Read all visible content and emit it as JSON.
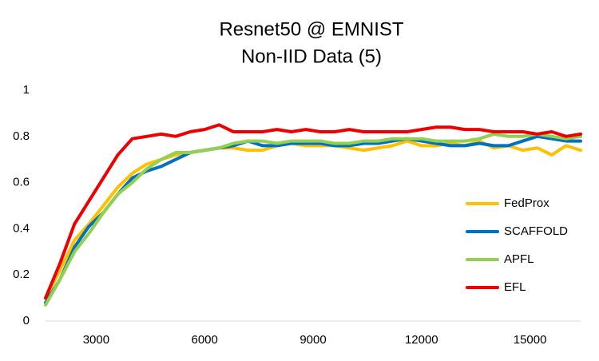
{
  "chart_data": {
    "type": "line",
    "title": "Resnet50 @ EMNIST",
    "subtitle": "Non-IID Data (5)",
    "x": [
      1600,
      2000,
      2400,
      2800,
      3200,
      3600,
      4000,
      4400,
      4800,
      5200,
      5600,
      6000,
      6400,
      6800,
      7200,
      7600,
      8000,
      8400,
      8800,
      9200,
      9600,
      10000,
      10400,
      10800,
      11200,
      11600,
      12000,
      12400,
      12800,
      13200,
      13600,
      14000,
      14400,
      14800,
      15200,
      15600,
      16000,
      16400
    ],
    "series": [
      {
        "name": "FedProx",
        "color": "#ffc000",
        "values": [
          0.1,
          0.22,
          0.35,
          0.42,
          0.5,
          0.58,
          0.64,
          0.68,
          0.7,
          0.72,
          0.73,
          0.74,
          0.75,
          0.75,
          0.74,
          0.74,
          0.76,
          0.77,
          0.76,
          0.76,
          0.76,
          0.75,
          0.74,
          0.75,
          0.76,
          0.78,
          0.76,
          0.76,
          0.77,
          0.76,
          0.78,
          0.75,
          0.76,
          0.74,
          0.75,
          0.72,
          0.76,
          0.74
        ]
      },
      {
        "name": "SCAFFOLD",
        "color": "#0070c0",
        "values": [
          0.08,
          0.18,
          0.32,
          0.41,
          0.47,
          0.55,
          0.62,
          0.65,
          0.67,
          0.7,
          0.73,
          0.74,
          0.75,
          0.76,
          0.78,
          0.76,
          0.76,
          0.77,
          0.77,
          0.77,
          0.76,
          0.76,
          0.77,
          0.77,
          0.78,
          0.79,
          0.78,
          0.77,
          0.76,
          0.76,
          0.77,
          0.76,
          0.76,
          0.78,
          0.8,
          0.79,
          0.78,
          0.78
        ]
      },
      {
        "name": "APFL",
        "color": "#92d050",
        "values": [
          0.07,
          0.18,
          0.3,
          0.38,
          0.47,
          0.55,
          0.6,
          0.66,
          0.7,
          0.73,
          0.73,
          0.74,
          0.75,
          0.77,
          0.78,
          0.78,
          0.77,
          0.78,
          0.78,
          0.78,
          0.77,
          0.77,
          0.78,
          0.78,
          0.79,
          0.79,
          0.79,
          0.78,
          0.78,
          0.78,
          0.79,
          0.81,
          0.8,
          0.8,
          0.81,
          0.8,
          0.79,
          0.8
        ]
      },
      {
        "name": "EFL",
        "color": "#ee0000",
        "values": [
          0.1,
          0.25,
          0.42,
          0.52,
          0.62,
          0.72,
          0.79,
          0.8,
          0.81,
          0.8,
          0.82,
          0.83,
          0.85,
          0.82,
          0.82,
          0.82,
          0.83,
          0.82,
          0.83,
          0.82,
          0.82,
          0.83,
          0.82,
          0.82,
          0.82,
          0.82,
          0.83,
          0.84,
          0.84,
          0.83,
          0.83,
          0.82,
          0.82,
          0.82,
          0.81,
          0.82,
          0.8,
          0.81
        ]
      }
    ],
    "xlim": [
      1600,
      16400
    ],
    "ylim": [
      0,
      1
    ],
    "xticks": [
      3000,
      6000,
      9000,
      12000,
      15000
    ],
    "yticks": [
      0,
      0.2,
      0.4,
      0.6,
      0.8,
      1
    ],
    "grid": false,
    "legend": "right"
  }
}
